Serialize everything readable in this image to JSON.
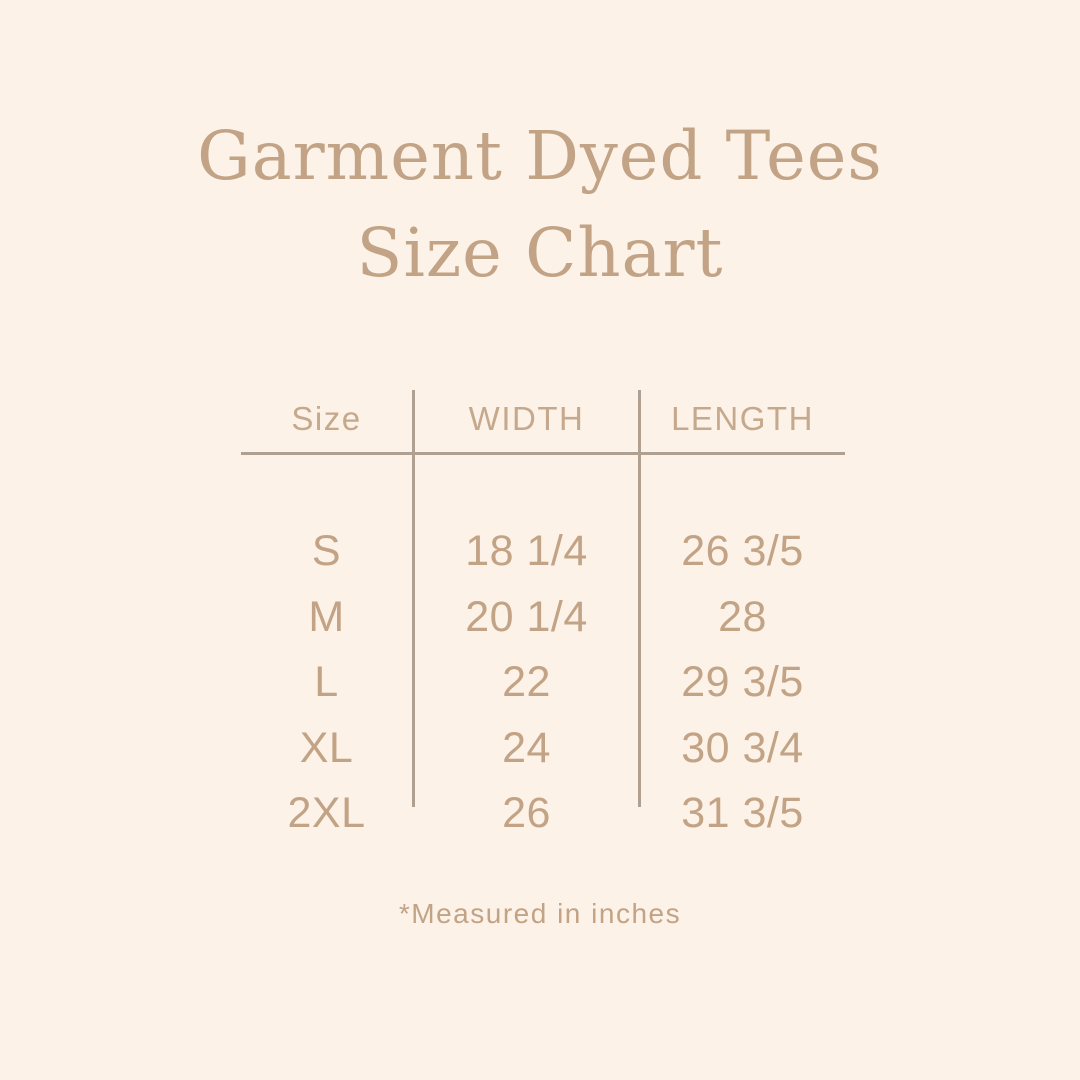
{
  "page": {
    "background_color": "#fcf2e8",
    "accent_color": "#c2a385",
    "line_color": "#b0a092"
  },
  "title": {
    "line1": "Garment Dyed Tees",
    "line2": "Size Chart"
  },
  "table": {
    "headers": [
      "Size",
      "WIDTH",
      "LENGTH"
    ],
    "rows": [
      {
        "size": "S",
        "width": "18 1/4",
        "length": "26 3/5"
      },
      {
        "size": "M",
        "width": "20 1/4",
        "length": "28"
      },
      {
        "size": "L",
        "width": "22",
        "length": "29 3/5"
      },
      {
        "size": "XL",
        "width": "24",
        "length": "30 3/4"
      },
      {
        "size": "2XL",
        "width": "26",
        "length": "31 3/5"
      }
    ]
  },
  "footnote": "*Measured in inches",
  "chart_data": {
    "type": "table",
    "title": "Garment Dyed Tees Size Chart",
    "columns": [
      "Size",
      "WIDTH",
      "LENGTH"
    ],
    "rows": [
      [
        "S",
        "18 1/4",
        "26 3/5"
      ],
      [
        "M",
        "20 1/4",
        "28"
      ],
      [
        "L",
        "22",
        "29 3/5"
      ],
      [
        "XL",
        "24",
        "30 3/4"
      ],
      [
        "2XL",
        "26",
        "31 3/5"
      ]
    ],
    "units_note": "*Measured in inches"
  }
}
